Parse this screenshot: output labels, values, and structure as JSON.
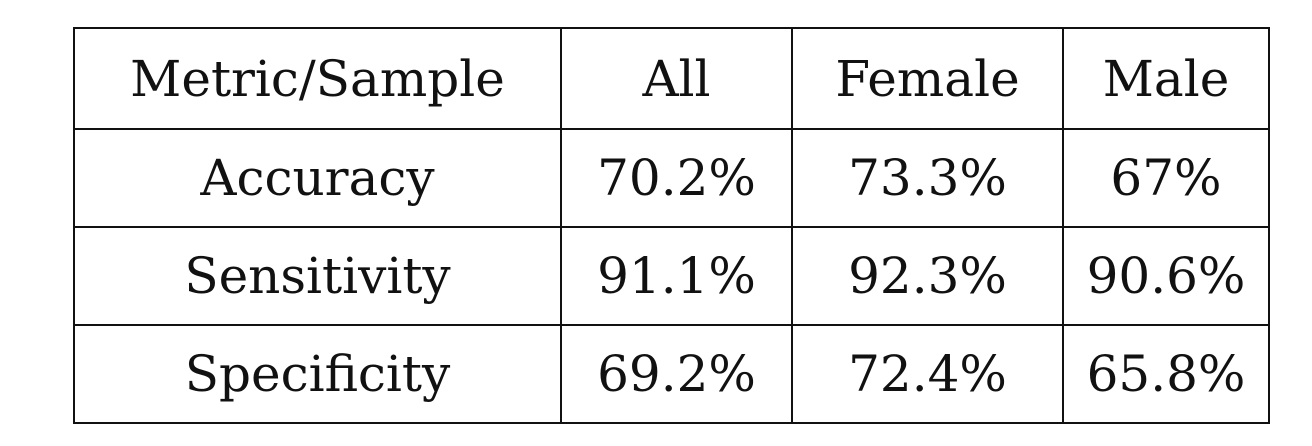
{
  "table": {
    "headers": [
      "Metric/Sample",
      "All",
      "Female",
      "Male"
    ],
    "rows": [
      [
        "Accuracy",
        "70.2%",
        "73.3%",
        "67%"
      ],
      [
        "Sensitivity",
        "91.1%",
        "92.3%",
        "90.6%"
      ],
      [
        "Specificity",
        "69.2%",
        "72.4%",
        "65.8%"
      ]
    ]
  }
}
